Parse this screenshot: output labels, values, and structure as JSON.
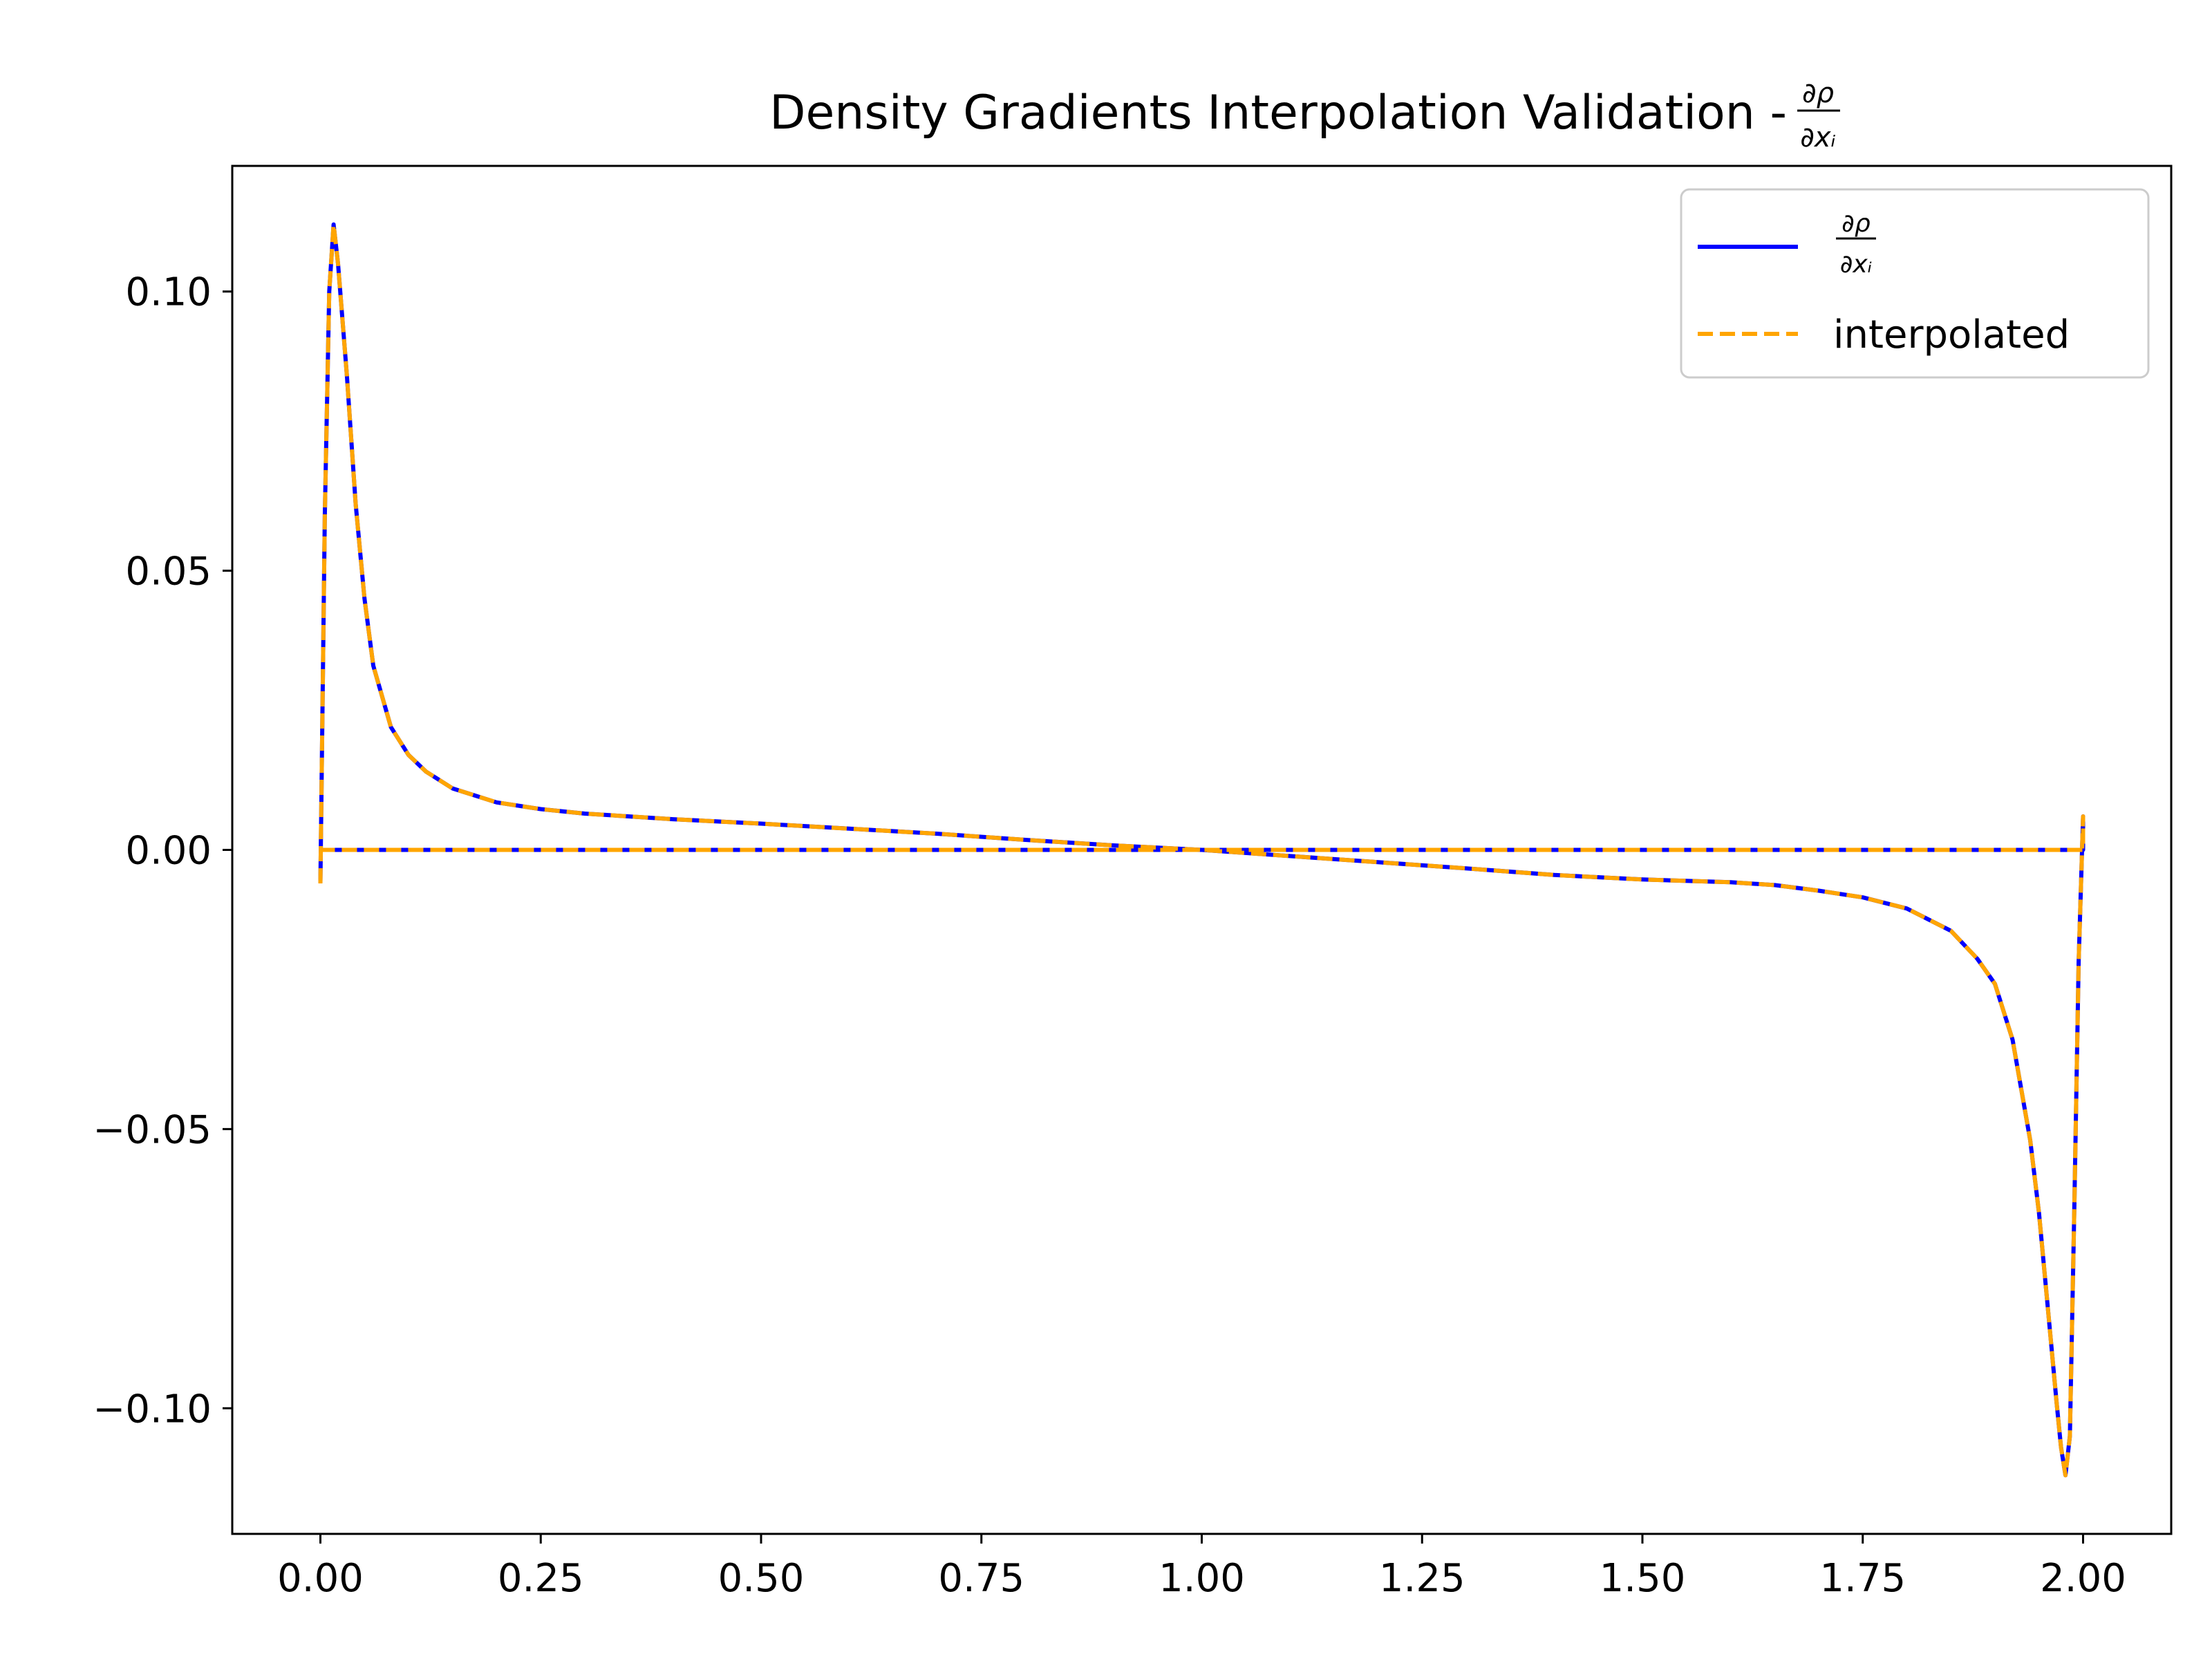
{
  "chart_data": {
    "type": "line",
    "title": "Density Gradients Interpolation Validation - ",
    "title_fraction": {
      "numerator": "∂ρ",
      "denominator": "∂xᵢ"
    },
    "xlabel": "",
    "ylabel": "",
    "xlim": [
      -0.1,
      2.1
    ],
    "ylim": [
      -0.1225,
      0.1225
    ],
    "x_ticks": [
      0.0,
      0.25,
      0.5,
      0.75,
      1.0,
      1.25,
      1.5,
      1.75,
      2.0
    ],
    "x_tick_labels": [
      "0.00",
      "0.25",
      "0.50",
      "0.75",
      "1.00",
      "1.25",
      "1.50",
      "1.75",
      "2.00"
    ],
    "y_ticks": [
      0.1,
      0.05,
      0.0,
      -0.05,
      -0.1
    ],
    "y_tick_labels": [
      "0.10",
      "0.05",
      "0.00",
      "−0.05",
      "−0.10"
    ],
    "grid": false,
    "legend_position": "top-right",
    "series": [
      {
        "name": "∂ρ/∂xᵢ",
        "legend_numerator": "∂ρ",
        "legend_denominator": "∂xᵢ",
        "color": "#0000ff",
        "style": "solid",
        "x": [
          0.0,
          0.005,
          0.01,
          0.015,
          0.02,
          0.03,
          0.04,
          0.05,
          0.06,
          0.08,
          0.1,
          0.12,
          0.15,
          0.2,
          0.25,
          0.3,
          0.4,
          0.5,
          0.6,
          0.7,
          0.8,
          0.9,
          1.0,
          1.1,
          1.2,
          1.3,
          1.4,
          1.5,
          1.6,
          1.65,
          1.7,
          1.75,
          1.8,
          1.85,
          1.88,
          1.9,
          1.92,
          1.94,
          1.95,
          1.96,
          1.97,
          1.975,
          1.98,
          1.985,
          1.99,
          1.995,
          2.0,
          2.0,
          0.0,
          0.0
        ],
        "y": [
          -0.006,
          0.06,
          0.1,
          0.112,
          0.105,
          0.085,
          0.062,
          0.045,
          0.033,
          0.022,
          0.017,
          0.014,
          0.011,
          0.0085,
          0.0073,
          0.0065,
          0.0055,
          0.0047,
          0.0038,
          0.0029,
          0.0018,
          0.0008,
          0.0,
          -0.0011,
          -0.0022,
          -0.0033,
          -0.0045,
          -0.0053,
          -0.0058,
          -0.0063,
          -0.0073,
          -0.0085,
          -0.0105,
          -0.0145,
          -0.0195,
          -0.024,
          -0.034,
          -0.052,
          -0.065,
          -0.082,
          -0.099,
          -0.107,
          -0.112,
          -0.105,
          -0.065,
          -0.02,
          0.006,
          0.0,
          0.0,
          0.0
        ]
      },
      {
        "name": "interpolated",
        "color": "#ffa500",
        "style": "dashed",
        "x": [
          0.0,
          0.005,
          0.01,
          0.015,
          0.02,
          0.03,
          0.04,
          0.05,
          0.06,
          0.08,
          0.1,
          0.12,
          0.15,
          0.2,
          0.25,
          0.3,
          0.4,
          0.5,
          0.6,
          0.7,
          0.8,
          0.9,
          1.0,
          1.1,
          1.2,
          1.3,
          1.4,
          1.5,
          1.6,
          1.65,
          1.7,
          1.75,
          1.8,
          1.85,
          1.88,
          1.9,
          1.92,
          1.94,
          1.95,
          1.96,
          1.97,
          1.975,
          1.98,
          1.985,
          1.99,
          1.995,
          2.0,
          2.0,
          0.0,
          0.0
        ],
        "y": [
          -0.006,
          0.06,
          0.1,
          0.112,
          0.105,
          0.085,
          0.062,
          0.045,
          0.033,
          0.022,
          0.017,
          0.014,
          0.011,
          0.0085,
          0.0073,
          0.0065,
          0.0055,
          0.0047,
          0.0038,
          0.0029,
          0.0018,
          0.0008,
          0.0,
          -0.0011,
          -0.0022,
          -0.0033,
          -0.0045,
          -0.0053,
          -0.0058,
          -0.0063,
          -0.0073,
          -0.0085,
          -0.0105,
          -0.0145,
          -0.0195,
          -0.024,
          -0.034,
          -0.052,
          -0.065,
          -0.082,
          -0.099,
          -0.107,
          -0.112,
          -0.105,
          -0.065,
          -0.02,
          0.006,
          0.0,
          0.0,
          0.0
        ]
      }
    ]
  }
}
